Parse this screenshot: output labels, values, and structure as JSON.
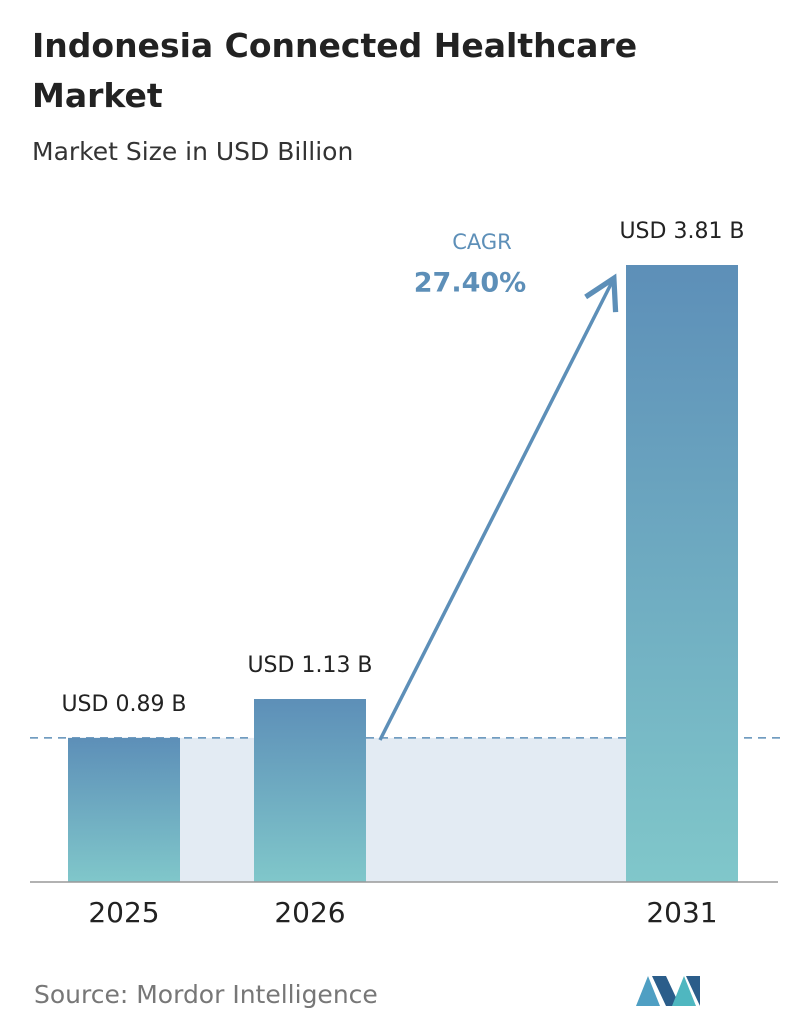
{
  "chart_data": {
    "type": "bar",
    "title": "Indonesia Connected Healthcare Market",
    "subtitle": "Market Size in USD Billion",
    "categories": [
      "2025",
      "2026",
      "2031"
    ],
    "values": [
      0.89,
      1.13,
      3.81
    ],
    "value_labels": [
      "USD 0.89 B",
      "USD 1.13 B",
      "USD 3.81 B"
    ],
    "color": [
      "#5d8fb8",
      "#80c7ca"
    ],
    "annotation": {
      "label": "CAGR",
      "value": "27.40%"
    },
    "source": "Source:  Mordor Intelligence"
  }
}
